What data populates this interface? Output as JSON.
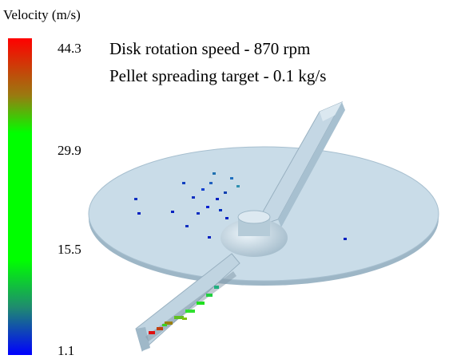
{
  "colorbar": {
    "title": "Velocity (m/s)",
    "ticks": [
      "44.3",
      "29.9",
      "15.5",
      "1.1"
    ]
  },
  "annotation": {
    "lines": [
      "Disk rotation speed - 870 rpm",
      "Pellet spreading target - 0.1 kg/s"
    ]
  }
}
